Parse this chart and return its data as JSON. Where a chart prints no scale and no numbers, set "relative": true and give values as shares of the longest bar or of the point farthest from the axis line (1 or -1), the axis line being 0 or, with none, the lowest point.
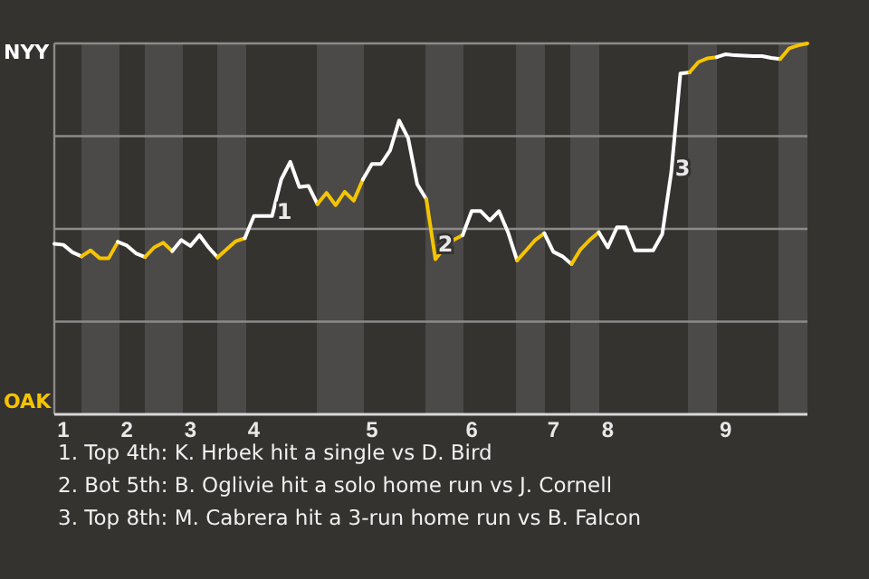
{
  "chart_data": {
    "type": "line",
    "relative": true,
    "marker": "none",
    "line_style": "solid",
    "categories": [
      null,
      "1",
      null,
      null,
      null,
      null,
      null,
      null,
      "2",
      null,
      null,
      null,
      null,
      null,
      null,
      "3",
      null,
      null,
      null,
      null,
      null,
      null,
      "4",
      null,
      null,
      null,
      null,
      null,
      null,
      null,
      null,
      null,
      null,
      null,
      null,
      "5",
      null,
      null,
      null,
      null,
      null,
      null,
      null,
      null,
      null,
      null,
      "6",
      null,
      null,
      null,
      null,
      null,
      null,
      null,
      null,
      "7",
      null,
      null,
      null,
      null,
      null,
      "8",
      null,
      null,
      null,
      null,
      null,
      null,
      null,
      null,
      null,
      null,
      null,
      null,
      "9",
      null,
      null,
      null,
      null,
      null,
      null,
      null,
      null,
      null
    ],
    "series": [
      {
        "name": "NYY",
        "color": "#ffffff",
        "values": [
          0.46,
          0.457,
          0.437,
          0.426,
          null,
          null,
          null,
          null,
          null,
          null,
          null,
          null,
          null,
          null,
          null,
          null,
          null,
          null,
          null,
          null,
          null,
          null,
          null,
          null,
          null,
          null,
          null,
          null,
          null,
          null,
          null,
          null,
          null,
          null,
          null,
          null,
          null,
          null,
          null,
          null,
          null,
          null,
          null,
          null,
          null,
          null,
          null,
          null,
          null,
          null,
          null,
          null,
          null,
          null,
          null,
          null,
          null,
          null,
          null,
          null,
          null,
          null,
          null,
          null,
          null,
          null,
          null,
          null,
          null,
          null,
          null,
          null,
          null,
          null,
          null,
          null,
          null,
          null,
          null,
          null,
          null,
          null,
          null,
          null
        ]
      },
      {
        "name": "OAK",
        "color": "#f5c400",
        "values": [
          null,
          null,
          null,
          0.426,
          0.442,
          0.421,
          0.421,
          0.465,
          null,
          null,
          null,
          null,
          null,
          null,
          null,
          null,
          null,
          null,
          null,
          null,
          null,
          null,
          null,
          null,
          null,
          null,
          null,
          null,
          null,
          null,
          null,
          null,
          null,
          null,
          null,
          null,
          null,
          null,
          null,
          null,
          null,
          null,
          null,
          null,
          null,
          null,
          null,
          null,
          null,
          null,
          null,
          null,
          null,
          null,
          null,
          null,
          null,
          null,
          null,
          null,
          null,
          null,
          null,
          null,
          null,
          null,
          null,
          null,
          null,
          null,
          null,
          null,
          null,
          null,
          null,
          null,
          null,
          null,
          null,
          null,
          null,
          null,
          null,
          null
        ]
      },
      {
        "color": "#ffffff",
        "values": [
          null,
          null,
          null,
          null,
          null,
          null,
          null,
          0.465,
          0.455,
          0.434,
          0.424,
          null,
          null,
          null,
          null,
          null,
          null,
          null,
          null,
          null,
          null,
          null,
          null,
          null,
          null,
          null,
          null,
          null,
          null,
          null,
          null,
          null,
          null,
          null,
          null,
          null,
          null,
          null,
          null,
          null,
          null,
          null,
          null,
          null,
          null,
          null,
          null,
          null,
          null,
          null,
          null,
          null,
          null,
          null,
          null,
          null,
          null,
          null,
          null,
          null,
          null,
          null,
          null,
          null,
          null,
          null,
          null,
          null,
          null,
          null,
          null,
          null,
          null,
          null,
          null,
          null,
          null,
          null,
          null,
          null,
          null,
          null,
          null,
          null
        ]
      },
      {
        "color": "#f5c400",
        "values": [
          null,
          null,
          null,
          null,
          null,
          null,
          null,
          null,
          null,
          null,
          0.424,
          0.45,
          0.463,
          0.44,
          null,
          null,
          null,
          null,
          null,
          null,
          null,
          null,
          null,
          null,
          null,
          null,
          null,
          null,
          null,
          null,
          null,
          null,
          null,
          null,
          null,
          null,
          null,
          null,
          null,
          null,
          null,
          null,
          null,
          null,
          null,
          null,
          null,
          null,
          null,
          null,
          null,
          null,
          null,
          null,
          null,
          null,
          null,
          null,
          null,
          null,
          null,
          null,
          null,
          null,
          null,
          null,
          null,
          null,
          null,
          null,
          null,
          null,
          null,
          null,
          null,
          null,
          null,
          null,
          null,
          null,
          null,
          null,
          null,
          null
        ]
      },
      {
        "color": "#ffffff",
        "values": [
          null,
          null,
          null,
          null,
          null,
          null,
          null,
          null,
          null,
          null,
          null,
          null,
          null,
          0.44,
          0.47,
          0.454,
          0.483,
          0.45,
          0.423,
          null,
          null,
          null,
          null,
          null,
          null,
          null,
          null,
          null,
          null,
          null,
          null,
          null,
          null,
          null,
          null,
          null,
          null,
          null,
          null,
          null,
          null,
          null,
          null,
          null,
          null,
          null,
          null,
          null,
          null,
          null,
          null,
          null,
          null,
          null,
          null,
          null,
          null,
          null,
          null,
          null,
          null,
          null,
          null,
          null,
          null,
          null,
          null,
          null,
          null,
          null,
          null,
          null,
          null,
          null,
          null,
          null,
          null,
          null,
          null,
          null,
          null,
          null,
          null,
          null
        ]
      },
      {
        "color": "#f5c400",
        "values": [
          null,
          null,
          null,
          null,
          null,
          null,
          null,
          null,
          null,
          null,
          null,
          null,
          null,
          null,
          null,
          null,
          null,
          null,
          0.423,
          0.445,
          0.467,
          0.475,
          null,
          null,
          null,
          null,
          null,
          null,
          null,
          null,
          null,
          null,
          null,
          null,
          null,
          null,
          null,
          null,
          null,
          null,
          null,
          null,
          null,
          null,
          null,
          null,
          null,
          null,
          null,
          null,
          null,
          null,
          null,
          null,
          null,
          null,
          null,
          null,
          null,
          null,
          null,
          null,
          null,
          null,
          null,
          null,
          null,
          null,
          null,
          null,
          null,
          null,
          null,
          null,
          null,
          null,
          null,
          null,
          null,
          null,
          null,
          null,
          null,
          null
        ]
      },
      {
        "color": "#ffffff",
        "values": [
          null,
          null,
          null,
          null,
          null,
          null,
          null,
          null,
          null,
          null,
          null,
          null,
          null,
          null,
          null,
          null,
          null,
          null,
          null,
          null,
          null,
          0.475,
          0.535,
          0.535,
          0.535,
          0.633,
          0.681,
          0.613,
          0.616,
          0.567,
          null,
          null,
          null,
          null,
          null,
          null,
          null,
          null,
          null,
          null,
          null,
          null,
          null,
          null,
          null,
          null,
          null,
          null,
          null,
          null,
          null,
          null,
          null,
          null,
          null,
          null,
          null,
          null,
          null,
          null,
          null,
          null,
          null,
          null,
          null,
          null,
          null,
          null,
          null,
          null,
          null,
          null,
          null,
          null,
          null,
          null,
          null,
          null,
          null,
          null,
          null,
          null,
          null,
          null
        ]
      },
      {
        "color": "#f5c400",
        "values": [
          null,
          null,
          null,
          null,
          null,
          null,
          null,
          null,
          null,
          null,
          null,
          null,
          null,
          null,
          null,
          null,
          null,
          null,
          null,
          null,
          null,
          null,
          null,
          null,
          null,
          null,
          null,
          null,
          null,
          0.567,
          0.597,
          0.564,
          0.6,
          0.576,
          0.633,
          null,
          null,
          null,
          null,
          null,
          null,
          null,
          null,
          null,
          null,
          null,
          null,
          null,
          null,
          null,
          null,
          null,
          null,
          null,
          null,
          null,
          null,
          null,
          null,
          null,
          null,
          null,
          null,
          null,
          null,
          null,
          null,
          null,
          null,
          null,
          null,
          null,
          null,
          null,
          null,
          null,
          null,
          null,
          null,
          null,
          null,
          null,
          null,
          null
        ]
      },
      {
        "color": "#ffffff",
        "values": [
          null,
          null,
          null,
          null,
          null,
          null,
          null,
          null,
          null,
          null,
          null,
          null,
          null,
          null,
          null,
          null,
          null,
          null,
          null,
          null,
          null,
          null,
          null,
          null,
          null,
          null,
          null,
          null,
          null,
          null,
          null,
          null,
          null,
          null,
          0.633,
          0.675,
          0.675,
          0.711,
          0.792,
          0.744,
          0.62,
          0.58,
          null,
          null,
          null,
          null,
          null,
          null,
          null,
          null,
          null,
          null,
          null,
          null,
          null,
          null,
          null,
          null,
          null,
          null,
          null,
          null,
          null,
          null,
          null,
          null,
          null,
          null,
          null,
          null,
          null,
          null,
          null,
          null,
          null,
          null,
          null,
          null,
          null,
          null,
          null,
          null,
          null,
          null
        ]
      },
      {
        "color": "#f5c400",
        "values": [
          null,
          null,
          null,
          null,
          null,
          null,
          null,
          null,
          null,
          null,
          null,
          null,
          null,
          null,
          null,
          null,
          null,
          null,
          null,
          null,
          null,
          null,
          null,
          null,
          null,
          null,
          null,
          null,
          null,
          null,
          null,
          null,
          null,
          null,
          null,
          null,
          null,
          null,
          null,
          null,
          null,
          0.58,
          0.418,
          0.45,
          0.47,
          0.483,
          null,
          null,
          null,
          null,
          null,
          null,
          null,
          null,
          null,
          null,
          null,
          null,
          null,
          null,
          null,
          null,
          null,
          null,
          null,
          null,
          null,
          null,
          null,
          null,
          null,
          null,
          null,
          null,
          null,
          null,
          null,
          null,
          null,
          null,
          null,
          null,
          null,
          null
        ]
      },
      {
        "color": "#ffffff",
        "values": [
          null,
          null,
          null,
          null,
          null,
          null,
          null,
          null,
          null,
          null,
          null,
          null,
          null,
          null,
          null,
          null,
          null,
          null,
          null,
          null,
          null,
          null,
          null,
          null,
          null,
          null,
          null,
          null,
          null,
          null,
          null,
          null,
          null,
          null,
          null,
          null,
          null,
          null,
          null,
          null,
          null,
          null,
          null,
          null,
          null,
          0.483,
          0.548,
          0.548,
          0.523,
          0.548,
          0.491,
          0.415,
          null,
          null,
          null,
          null,
          null,
          null,
          null,
          null,
          null,
          null,
          null,
          null,
          null,
          null,
          null,
          null,
          null,
          null,
          null,
          null,
          null,
          null,
          null,
          null,
          null,
          null,
          null,
          null,
          null,
          null,
          null,
          null
        ]
      },
      {
        "color": "#f5c400",
        "values": [
          null,
          null,
          null,
          null,
          null,
          null,
          null,
          null,
          null,
          null,
          null,
          null,
          null,
          null,
          null,
          null,
          null,
          null,
          null,
          null,
          null,
          null,
          null,
          null,
          null,
          null,
          null,
          null,
          null,
          null,
          null,
          null,
          null,
          null,
          null,
          null,
          null,
          null,
          null,
          null,
          null,
          null,
          null,
          null,
          null,
          null,
          null,
          null,
          null,
          null,
          null,
          0.415,
          0.442,
          0.47,
          0.488,
          null,
          null,
          null,
          null,
          null,
          null,
          null,
          null,
          null,
          null,
          null,
          null,
          null,
          null,
          null,
          null,
          null,
          null,
          null,
          null,
          null,
          null,
          null,
          null,
          null,
          null,
          null,
          null,
          null
        ]
      },
      {
        "color": "#ffffff",
        "values": [
          null,
          null,
          null,
          null,
          null,
          null,
          null,
          null,
          null,
          null,
          null,
          null,
          null,
          null,
          null,
          null,
          null,
          null,
          null,
          null,
          null,
          null,
          null,
          null,
          null,
          null,
          null,
          null,
          null,
          null,
          null,
          null,
          null,
          null,
          null,
          null,
          null,
          null,
          null,
          null,
          null,
          null,
          null,
          null,
          null,
          null,
          null,
          null,
          null,
          null,
          null,
          null,
          null,
          null,
          0.488,
          0.438,
          0.426,
          0.405,
          null,
          null,
          null,
          null,
          null,
          null,
          null,
          null,
          null,
          null,
          null,
          null,
          null,
          null,
          null,
          null,
          null,
          null,
          null,
          null,
          null,
          null,
          null,
          null,
          null,
          null
        ]
      },
      {
        "color": "#f5c400",
        "values": [
          null,
          null,
          null,
          null,
          null,
          null,
          null,
          null,
          null,
          null,
          null,
          null,
          null,
          null,
          null,
          null,
          null,
          null,
          null,
          null,
          null,
          null,
          null,
          null,
          null,
          null,
          null,
          null,
          null,
          null,
          null,
          null,
          null,
          null,
          null,
          null,
          null,
          null,
          null,
          null,
          null,
          null,
          null,
          null,
          null,
          null,
          null,
          null,
          null,
          null,
          null,
          null,
          null,
          null,
          null,
          null,
          null,
          0.405,
          0.445,
          0.47,
          0.491,
          null,
          null,
          null,
          null,
          null,
          null,
          null,
          null,
          null,
          null,
          null,
          null,
          null,
          null,
          null,
          null,
          null,
          null,
          null,
          null,
          null,
          null,
          null
        ]
      },
      {
        "color": "#ffffff",
        "values": [
          null,
          null,
          null,
          null,
          null,
          null,
          null,
          null,
          null,
          null,
          null,
          null,
          null,
          null,
          null,
          null,
          null,
          null,
          null,
          null,
          null,
          null,
          null,
          null,
          null,
          null,
          null,
          null,
          null,
          null,
          null,
          null,
          null,
          null,
          null,
          null,
          null,
          null,
          null,
          null,
          null,
          null,
          null,
          null,
          null,
          null,
          null,
          null,
          null,
          null,
          null,
          null,
          null,
          null,
          null,
          null,
          null,
          null,
          null,
          null,
          0.491,
          0.45,
          0.504,
          0.504,
          0.442,
          0.442,
          0.442,
          0.486,
          0.654,
          0.919,
          0.922,
          null,
          null,
          null,
          null,
          null,
          null,
          null,
          null,
          null,
          null,
          null,
          null,
          null
        ]
      },
      {
        "color": "#f5c400",
        "values": [
          null,
          null,
          null,
          null,
          null,
          null,
          null,
          null,
          null,
          null,
          null,
          null,
          null,
          null,
          null,
          null,
          null,
          null,
          null,
          null,
          null,
          null,
          null,
          null,
          null,
          null,
          null,
          null,
          null,
          null,
          null,
          null,
          null,
          null,
          null,
          null,
          null,
          null,
          null,
          null,
          null,
          null,
          null,
          null,
          null,
          null,
          null,
          null,
          null,
          null,
          null,
          null,
          null,
          null,
          null,
          null,
          null,
          null,
          null,
          null,
          null,
          null,
          null,
          null,
          null,
          null,
          null,
          null,
          null,
          null,
          0.922,
          0.95,
          0.96,
          0.963,
          null,
          null,
          null,
          null,
          null,
          null,
          null,
          null,
          null,
          null
        ]
      },
      {
        "color": "#ffffff",
        "values": [
          null,
          null,
          null,
          null,
          null,
          null,
          null,
          null,
          null,
          null,
          null,
          null,
          null,
          null,
          null,
          null,
          null,
          null,
          null,
          null,
          null,
          null,
          null,
          null,
          null,
          null,
          null,
          null,
          null,
          null,
          null,
          null,
          null,
          null,
          null,
          null,
          null,
          null,
          null,
          null,
          null,
          null,
          null,
          null,
          null,
          null,
          null,
          null,
          null,
          null,
          null,
          null,
          null,
          null,
          null,
          null,
          null,
          null,
          null,
          null,
          null,
          null,
          null,
          null,
          null,
          null,
          null,
          null,
          null,
          null,
          null,
          null,
          null,
          0.963,
          0.971,
          0.968,
          0.967,
          0.966,
          0.966,
          0.961,
          0.958,
          null,
          null,
          null
        ]
      },
      {
        "color": "#f5c400",
        "values": [
          null,
          null,
          null,
          null,
          null,
          null,
          null,
          null,
          null,
          null,
          null,
          null,
          null,
          null,
          null,
          null,
          null,
          null,
          null,
          null,
          null,
          null,
          null,
          null,
          null,
          null,
          null,
          null,
          null,
          null,
          null,
          null,
          null,
          null,
          null,
          null,
          null,
          null,
          null,
          null,
          null,
          null,
          null,
          null,
          null,
          null,
          null,
          null,
          null,
          null,
          null,
          null,
          null,
          null,
          null,
          null,
          null,
          null,
          null,
          null,
          null,
          null,
          null,
          null,
          null,
          null,
          null,
          null,
          null,
          null,
          null,
          null,
          null,
          null,
          null,
          null,
          null,
          null,
          null,
          null,
          0.958,
          0.987,
          0.995,
          1
        ]
      }
    ],
    "annotations": [
      "1",
      "2",
      "3",
      "1. Top 4th: K. Hrbek hit a single vs D. Bird",
      "2. Bot 5th: B. Oglivie hit a solo home run vs J. Cornell",
      "3. Top 8th: M. Cabrera hit a 3-run home run vs B. Falcon"
    ]
  }
}
